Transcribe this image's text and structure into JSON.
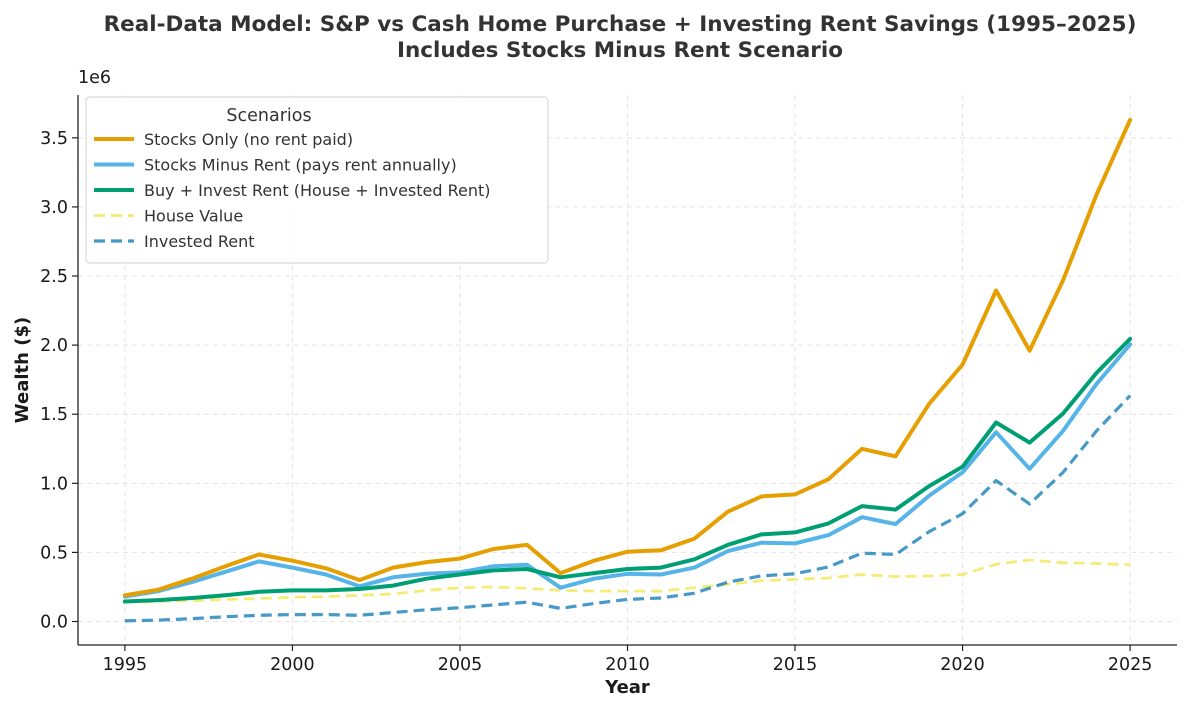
{
  "chart_data": {
    "type": "line",
    "title": "Real-Data Model: S&P vs Cash Home Purchase + Investing Rent Savings (1995–2025)",
    "subtitle": "Includes Stocks Minus Rent Scenario",
    "xlabel": "Year",
    "ylabel": "Wealth ($)",
    "y_offset_label": "1e6",
    "xlim": [
      1993.6,
      2026.4
    ],
    "ylim": [
      -170000,
      3810000
    ],
    "x_ticks": [
      1995,
      2000,
      2005,
      2010,
      2015,
      2020,
      2025
    ],
    "x_tick_labels": [
      "1995",
      "2000",
      "2005",
      "2010",
      "2015",
      "2020",
      "2025"
    ],
    "y_ticks": [
      0,
      500000,
      1000000,
      1500000,
      2000000,
      2500000,
      3000000,
      3500000
    ],
    "y_tick_labels": [
      "0.0",
      "0.5",
      "1.0",
      "1.5",
      "2.0",
      "2.5",
      "3.0",
      "3.5"
    ],
    "grid": true,
    "legend": {
      "title": "Scenarios",
      "placement": "top-left"
    },
    "x": [
      1995,
      1996,
      1997,
      1998,
      1999,
      2000,
      2001,
      2002,
      2003,
      2004,
      2005,
      2006,
      2007,
      2008,
      2009,
      2010,
      2011,
      2012,
      2013,
      2014,
      2015,
      2016,
      2017,
      2018,
      2019,
      2020,
      2021,
      2022,
      2023,
      2024,
      2025
    ],
    "series": [
      {
        "name": "Stocks Only (no rent paid)",
        "color": "#E69F00",
        "style": "solid",
        "width": 4,
        "values": [
          190000,
          230000,
          310000,
          400000,
          485000,
          440000,
          385000,
          300000,
          390000,
          430000,
          455000,
          525000,
          555000,
          350000,
          440000,
          505000,
          515000,
          600000,
          795000,
          905000,
          920000,
          1030000,
          1250000,
          1195000,
          1575000,
          1860000,
          2395000,
          1960000,
          2470000,
          3090000,
          3630000
        ]
      },
      {
        "name": "Stocks Minus Rent (pays rent annually)",
        "color": "#56B4E9",
        "style": "solid",
        "width": 4,
        "values": [
          180000,
          220000,
          285000,
          360000,
          435000,
          390000,
          340000,
          255000,
          320000,
          345000,
          355000,
          400000,
          410000,
          245000,
          310000,
          345000,
          340000,
          390000,
          510000,
          570000,
          565000,
          625000,
          755000,
          705000,
          910000,
          1080000,
          1370000,
          1105000,
          1380000,
          1720000,
          2005000
        ]
      },
      {
        "name": "Buy + Invest Rent (House + Invested Rent)",
        "color": "#009E73",
        "style": "solid",
        "width": 4,
        "values": [
          145000,
          155000,
          170000,
          190000,
          215000,
          225000,
          225000,
          235000,
          260000,
          310000,
          340000,
          370000,
          380000,
          320000,
          350000,
          380000,
          390000,
          450000,
          555000,
          630000,
          645000,
          710000,
          835000,
          810000,
          980000,
          1120000,
          1440000,
          1295000,
          1505000,
          1800000,
          2045000
        ]
      },
      {
        "name": "House Value",
        "color": "#F0E442",
        "style": "dashed",
        "width": 2.8,
        "values": [
          140000,
          145000,
          150000,
          160000,
          165000,
          175000,
          180000,
          190000,
          200000,
          225000,
          245000,
          250000,
          240000,
          225000,
          220000,
          220000,
          220000,
          245000,
          270000,
          295000,
          305000,
          315000,
          340000,
          325000,
          330000,
          340000,
          415000,
          445000,
          425000,
          420000,
          410000
        ]
      },
      {
        "name": "Invested Rent",
        "color": "#0072B2",
        "style": "dashed",
        "width": 3.2,
        "values": [
          5000,
          10000,
          20000,
          35000,
          45000,
          50000,
          50000,
          45000,
          65000,
          85000,
          100000,
          120000,
          140000,
          95000,
          130000,
          160000,
          170000,
          205000,
          285000,
          330000,
          345000,
          395000,
          495000,
          485000,
          650000,
          780000,
          1020000,
          850000,
          1080000,
          1380000,
          1635000
        ]
      }
    ]
  }
}
